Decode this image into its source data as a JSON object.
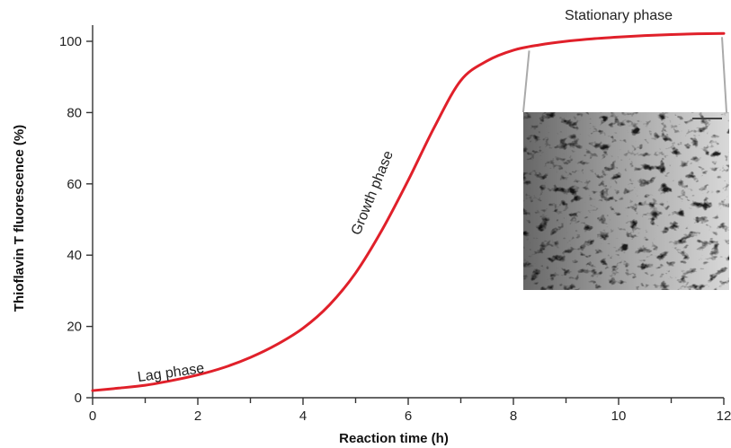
{
  "chart_data": {
    "type": "line",
    "xlabel": "Reaction time (h)",
    "ylabel": "Thioflavin T fluorescence (%)",
    "xlim": [
      0,
      12
    ],
    "ylim": [
      0,
      100
    ],
    "x_ticks": [
      0,
      2,
      4,
      6,
      8,
      10,
      12
    ],
    "y_ticks": [
      0,
      20,
      40,
      60,
      80,
      100
    ],
    "grid": false,
    "legend": "none",
    "series": [
      {
        "color": "#e0202a",
        "x": [
          0,
          0.5,
          1,
          1.5,
          2,
          2.5,
          3,
          3.5,
          4,
          4.5,
          5,
          5.5,
          6,
          6.5,
          7,
          7.5,
          8,
          8.5,
          9,
          9.5,
          10,
          10.5,
          11,
          11.5,
          12
        ],
        "y": [
          2,
          2.7,
          3.5,
          4.8,
          6.4,
          8.5,
          11.3,
          14.9,
          19.5,
          26,
          35,
          47,
          61,
          76,
          89,
          94.5,
          97.5,
          99,
          100,
          100.7,
          101.2,
          101.6,
          101.9,
          102.1,
          102.2
        ]
      }
    ],
    "annotations": [
      {
        "text": "Lag phase",
        "x": 1.5,
        "y": 5.8
      },
      {
        "text": "Growth phase",
        "x": 5.6,
        "y": 57
      },
      {
        "text": "Stationary phase",
        "x": 10,
        "y": 106
      }
    ],
    "inset": {
      "type": "micrograph",
      "description_ref": "fibrils",
      "callout_x_range": [
        8.3,
        12
      ]
    }
  }
}
